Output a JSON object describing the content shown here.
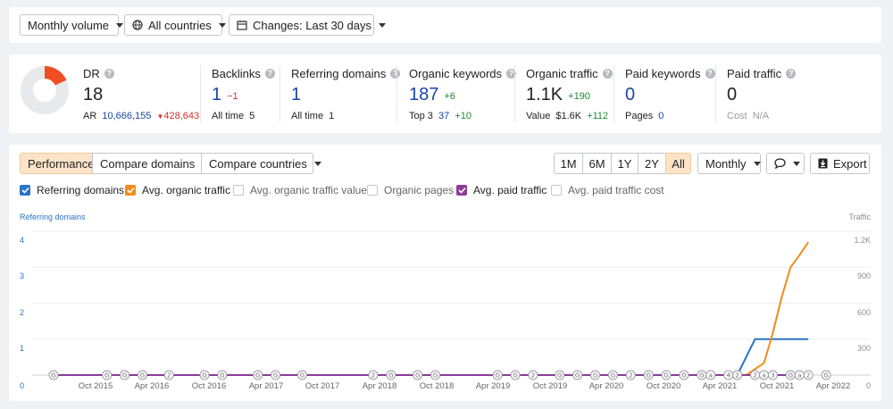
{
  "filters": {
    "volume": "Monthly volume",
    "countries": "All countries",
    "changes": "Changes: Last 30 days"
  },
  "metrics": {
    "dr": {
      "label": "DR",
      "value": "18",
      "ar_label": "AR",
      "ar_value": "10,666,155",
      "ar_delta": "428,643",
      "donut_percent": 18
    },
    "backlinks": {
      "label": "Backlinks",
      "value": "1",
      "delta": "−1",
      "sub_label": "All time",
      "sub_value": "5"
    },
    "ref_domains": {
      "label": "Referring domains",
      "value": "1",
      "sub_label": "All time",
      "sub_value": "1"
    },
    "organic_keywords": {
      "label": "Organic keywords",
      "value": "187",
      "delta": "+6",
      "sub_label": "Top 3",
      "sub_value": "37",
      "sub_delta": "+10"
    },
    "organic_traffic": {
      "label": "Organic traffic",
      "value": "1.1K",
      "delta": "+190",
      "sub_label": "Value",
      "sub_value": "$1.6K",
      "sub_delta": "+112"
    },
    "paid_keywords": {
      "label": "Paid keywords",
      "value": "0",
      "sub_label": "Pages",
      "sub_value": "0"
    },
    "paid_traffic": {
      "label": "Paid traffic",
      "value": "0",
      "sub_label": "Cost",
      "sub_value": "N/A"
    }
  },
  "toolbar": {
    "tabs": [
      "Performance",
      "Compare domains",
      "Compare countries"
    ],
    "ranges": [
      "1M",
      "6M",
      "1Y",
      "2Y",
      "All"
    ],
    "active_range": "All",
    "interval": "Monthly",
    "export": "Export"
  },
  "checkboxes": [
    {
      "label": "Referring domains",
      "checked": true,
      "color": "#2b73c9"
    },
    {
      "label": "Avg. organic traffic",
      "checked": true,
      "color": "#f28b1c"
    },
    {
      "label": "Avg. organic traffic value",
      "checked": false
    },
    {
      "label": "Organic pages",
      "checked": false
    },
    {
      "label": "Avg. paid traffic",
      "checked": true,
      "color": "#8b3d99"
    },
    {
      "label": "Avg. paid traffic cost",
      "checked": false
    }
  ],
  "chart_data": {
    "type": "line",
    "left_axis_title": "Referring domains",
    "right_axis_title": "Traffic",
    "left_ticks": [
      "0",
      "1",
      "2",
      "3",
      "4"
    ],
    "right_ticks": [
      "0",
      "300",
      "600",
      "900",
      "1.2K"
    ],
    "x_ticks": [
      "Oct 2015",
      "Apr 2016",
      "Oct 2016",
      "Apr 2017",
      "Oct 2017",
      "Apr 2018",
      "Oct 2018",
      "Apr 2019",
      "Oct 2019",
      "Apr 2020",
      "Oct 2020",
      "Apr 2021",
      "Oct 2021",
      "Apr 2022"
    ],
    "ylim_left": [
      0,
      4
    ],
    "ylim_right": [
      0,
      1200
    ],
    "series": [
      {
        "name": "Referring domains",
        "color": "#2b73c9",
        "axis": "left",
        "points": [
          [
            "2015-04",
            0
          ],
          [
            "2021-09",
            0
          ],
          [
            "2021-11",
            1
          ],
          [
            "2022-05",
            1
          ]
        ]
      },
      {
        "name": "Avg. organic traffic",
        "color": "#f28b1c",
        "axis": "right",
        "points": [
          [
            "2021-10",
            0
          ],
          [
            "2021-12",
            100
          ],
          [
            "2022-01",
            350
          ],
          [
            "2022-02",
            650
          ],
          [
            "2022-03",
            900
          ],
          [
            "2022-04",
            1000
          ],
          [
            "2022-05",
            1110
          ]
        ]
      },
      {
        "name": "Avg. paid traffic",
        "color": "#8b3d99",
        "axis": "right",
        "points": [
          [
            "2015-04",
            0
          ],
          [
            "2022-05",
            0
          ]
        ]
      }
    ],
    "annotations": [
      {
        "date": "2015-04",
        "label": "G"
      },
      {
        "date": "2015-10",
        "label": "G"
      },
      {
        "date": "2015-12",
        "label": "G"
      },
      {
        "date": "2016-02",
        "label": "G"
      },
      {
        "date": "2016-05",
        "label": "2"
      },
      {
        "date": "2016-09",
        "label": "G"
      },
      {
        "date": "2016-11",
        "label": "G"
      },
      {
        "date": "2017-03",
        "label": "G"
      },
      {
        "date": "2017-05",
        "label": "G"
      },
      {
        "date": "2017-08",
        "label": "G"
      },
      {
        "date": "2018-04",
        "label": "2"
      },
      {
        "date": "2018-06",
        "label": "G"
      },
      {
        "date": "2018-09",
        "label": "G"
      },
      {
        "date": "2018-11",
        "label": "G"
      },
      {
        "date": "2019-06",
        "label": "G"
      },
      {
        "date": "2019-08",
        "label": "G"
      },
      {
        "date": "2019-10",
        "label": "2"
      },
      {
        "date": "2020-01",
        "label": "G"
      },
      {
        "date": "2020-03",
        "label": "G"
      },
      {
        "date": "2020-05",
        "label": "G"
      },
      {
        "date": "2020-07",
        "label": "G"
      },
      {
        "date": "2020-09",
        "label": "2"
      },
      {
        "date": "2020-11",
        "label": "G"
      },
      {
        "date": "2021-01",
        "label": "G"
      },
      {
        "date": "2021-03",
        "label": "G"
      },
      {
        "date": "2021-05",
        "label": "G"
      },
      {
        "date": "2021-06",
        "label": "a"
      },
      {
        "date": "2021-08",
        "label": "4"
      },
      {
        "date": "2021-09",
        "label": "2"
      },
      {
        "date": "2021-11",
        "label": "2"
      },
      {
        "date": "2021-12",
        "label": "a"
      },
      {
        "date": "2022-01",
        "label": "3"
      },
      {
        "date": "2022-03",
        "label": "G"
      },
      {
        "date": "2022-04",
        "label": "a"
      },
      {
        "date": "2022-05",
        "label": "2"
      },
      {
        "date": "2022-07",
        "label": "G"
      }
    ]
  }
}
